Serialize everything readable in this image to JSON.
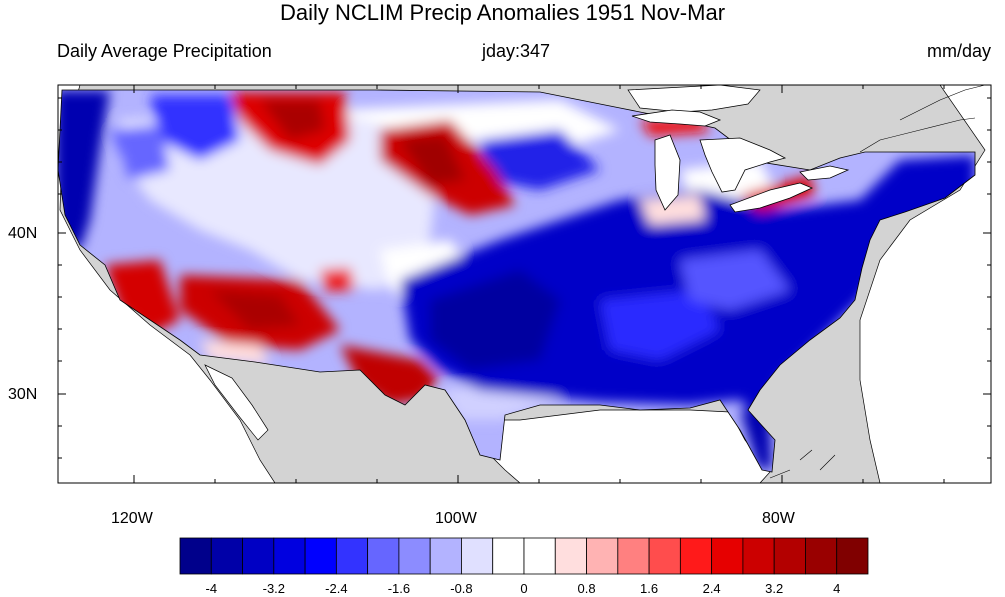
{
  "title": "Daily NCLIM Precip Anomalies 1951 Nov-Mar",
  "left_string": "Daily Average Precipitation",
  "center_string": "jday:347",
  "right_string": "mm/day",
  "latitude_labels": [
    "40N",
    "30N"
  ],
  "longitude_labels": [
    "120W",
    "100W",
    "80W"
  ],
  "colorbar": {
    "labels": [
      "-4",
      "-3.2",
      "-2.4",
      "-1.6",
      "-0.8",
      "0",
      "0.8",
      "1.6",
      "2.4",
      "3.2",
      "4"
    ],
    "colors": [
      "#00008b",
      "#0000a8",
      "#0000c4",
      "#0000e0",
      "#0000ff",
      "#3333ff",
      "#6666ff",
      "#8c8cff",
      "#b3b3ff",
      "#e0e0ff",
      "#ffffff",
      "#ffffff",
      "#ffdede",
      "#ffb3b3",
      "#ff8080",
      "#ff4d4d",
      "#ff1a1a",
      "#e60000",
      "#cc0000",
      "#b30000",
      "#990000",
      "#800000"
    ]
  },
  "colors": {
    "land_mask": "#d3d3d3",
    "water": "#ffffff"
  }
}
